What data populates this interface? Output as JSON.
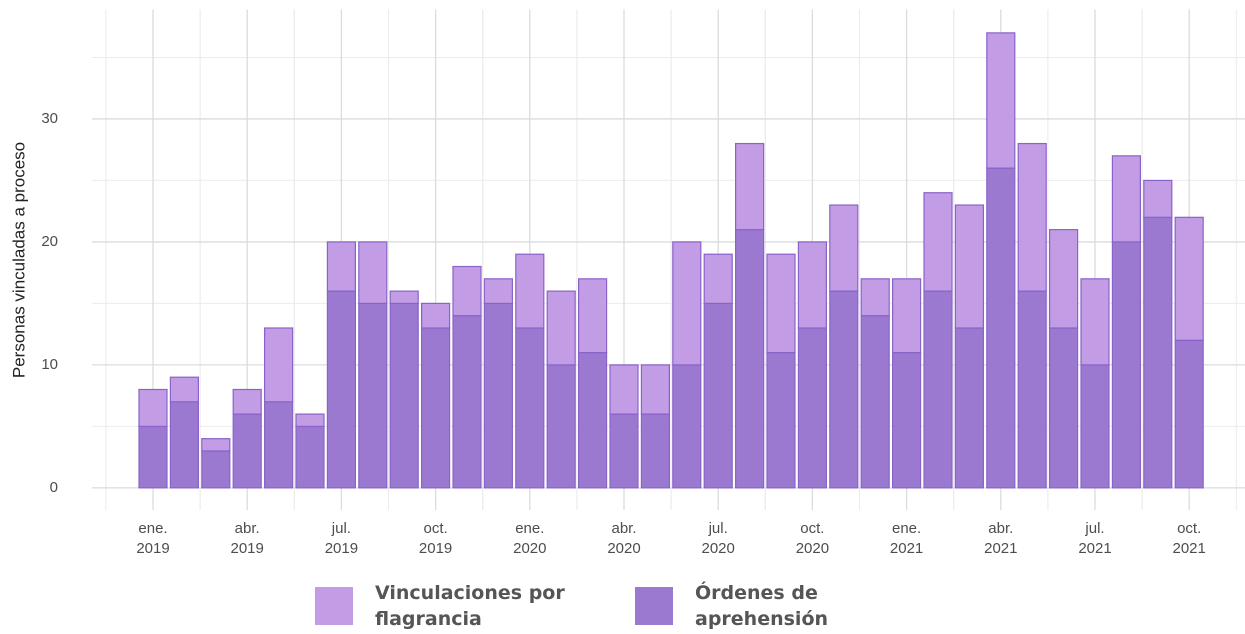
{
  "chart_data": {
    "type": "bar",
    "stacked": true,
    "y_label": "Personas vinculadas a proceso",
    "x": [
      "2019-01",
      "2019-02",
      "2019-03",
      "2019-04",
      "2019-05",
      "2019-06",
      "2019-07",
      "2019-08",
      "2019-09",
      "2019-10",
      "2019-11",
      "2019-12",
      "2020-01",
      "2020-02",
      "2020-03",
      "2020-04",
      "2020-05",
      "2020-06",
      "2020-07",
      "2020-08",
      "2020-09",
      "2020-10",
      "2020-11",
      "2020-12",
      "2021-01",
      "2021-02",
      "2021-03",
      "2021-04",
      "2021-05",
      "2021-06",
      "2021-07",
      "2021-08",
      "2021-09",
      "2021-10"
    ],
    "series": [
      {
        "name": "Vinculaciones por flagrancia",
        "color": "#c29ce4",
        "values": [
          3,
          2,
          1,
          2,
          6,
          1,
          4,
          5,
          1,
          2,
          4,
          2,
          6,
          6,
          6,
          4,
          4,
          10,
          4,
          7,
          8,
          7,
          7,
          3,
          6,
          8,
          10,
          11,
          12,
          8,
          7,
          7,
          3,
          10
        ]
      },
      {
        "name": "Órdenes de aprehensión",
        "color": "#9b79d0",
        "values": [
          5,
          7,
          3,
          6,
          7,
          5,
          16,
          15,
          15,
          13,
          14,
          15,
          13,
          10,
          11,
          6,
          6,
          10,
          15,
          21,
          11,
          13,
          16,
          14,
          11,
          16,
          13,
          26,
          16,
          13,
          10,
          20,
          22,
          12
        ]
      }
    ],
    "ylim": [
      -1.8,
      38.9
    ],
    "yticks": [
      0,
      10,
      20,
      30
    ],
    "yminor": [
      5,
      15,
      25,
      35
    ],
    "grid": true,
    "xticks": [
      {
        "value": "2019-01",
        "label": [
          "ene.",
          "2019"
        ]
      },
      {
        "value": "2019-04",
        "label": [
          "abr.",
          "2019"
        ]
      },
      {
        "value": "2019-07",
        "label": [
          "jul.",
          "2019"
        ]
      },
      {
        "value": "2019-10",
        "label": [
          "oct.",
          "2019"
        ]
      },
      {
        "value": "2020-01",
        "label": [
          "ene.",
          "2020"
        ]
      },
      {
        "value": "2020-04",
        "label": [
          "abr.",
          "2020"
        ]
      },
      {
        "value": "2020-07",
        "label": [
          "jul.",
          "2020"
        ]
      },
      {
        "value": "2020-10",
        "label": [
          "oct.",
          "2020"
        ]
      },
      {
        "value": "2021-01",
        "label": [
          "ene.",
          "2021"
        ]
      },
      {
        "value": "2021-04",
        "label": [
          "abr.",
          "2021"
        ]
      },
      {
        "value": "2021-07",
        "label": [
          "jul.",
          "2021"
        ]
      },
      {
        "value": "2021-10",
        "label": [
          "oct.",
          "2021"
        ]
      }
    ],
    "legend": "bottom"
  }
}
